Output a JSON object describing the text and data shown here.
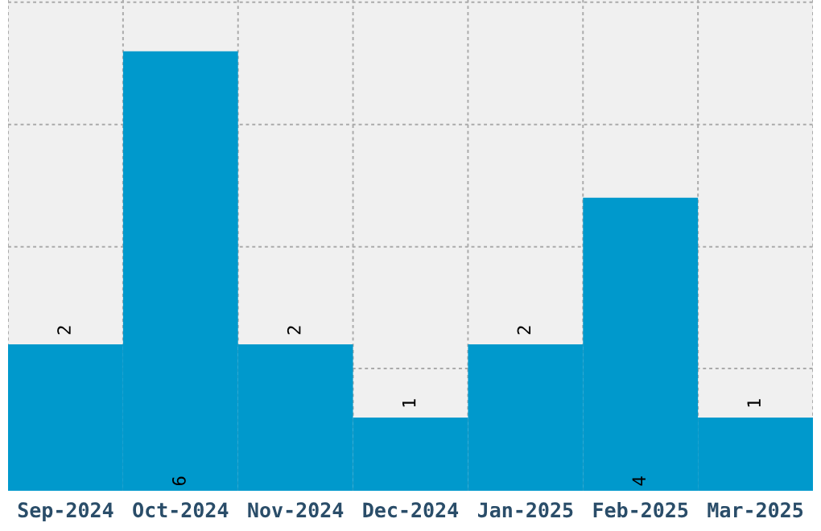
{
  "chart_data": {
    "type": "bar",
    "categories": [
      "Sep-2024",
      "Oct-2024",
      "Nov-2024",
      "Dec-2024",
      "Jan-2025",
      "Feb-2025",
      "Mar-2025"
    ],
    "values": [
      2,
      6,
      2,
      1,
      2,
      4,
      1
    ],
    "color": "#0099cc",
    "ylim": [
      0,
      6.7
    ],
    "yticks": [
      {
        "value": 1.67,
        "label": null
      },
      {
        "value": 3.33,
        "label": null
      },
      {
        "value": 5,
        "label": null
      },
      {
        "value": 6.67,
        "label": null
      }
    ],
    "tick_labels": "x",
    "data_labels": true,
    "grid": true
  }
}
